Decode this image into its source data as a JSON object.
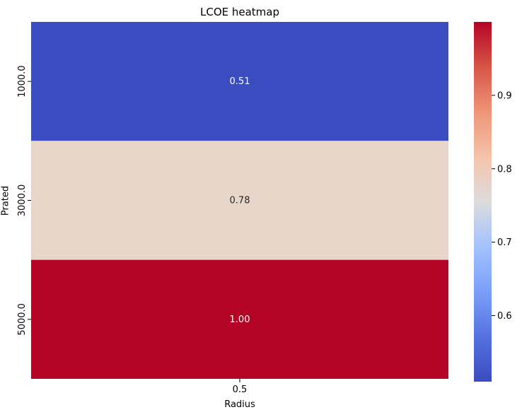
{
  "chart_data": {
    "type": "heatmap",
    "title": "LCOE heatmap",
    "xlabel": "Radius",
    "ylabel": "Prated",
    "x_categories": [
      "0.5"
    ],
    "y_categories": [
      "1000.0",
      "3000.0",
      "5000.0"
    ],
    "values": [
      [
        0.51
      ],
      [
        0.78
      ],
      [
        1.0
      ]
    ],
    "annotations": [
      "0.51",
      "0.78",
      "1.00"
    ],
    "colormap": "coolwarm",
    "colorbar": {
      "range": [
        0.51,
        1.0
      ],
      "ticks": [
        0.6,
        0.7,
        0.8,
        0.9
      ],
      "tick_labels": [
        "0.6",
        "0.7",
        "0.8",
        "0.9"
      ]
    },
    "cell_colors": [
      "#3b4cc0",
      "#e8d6ca",
      "#b40426"
    ]
  }
}
